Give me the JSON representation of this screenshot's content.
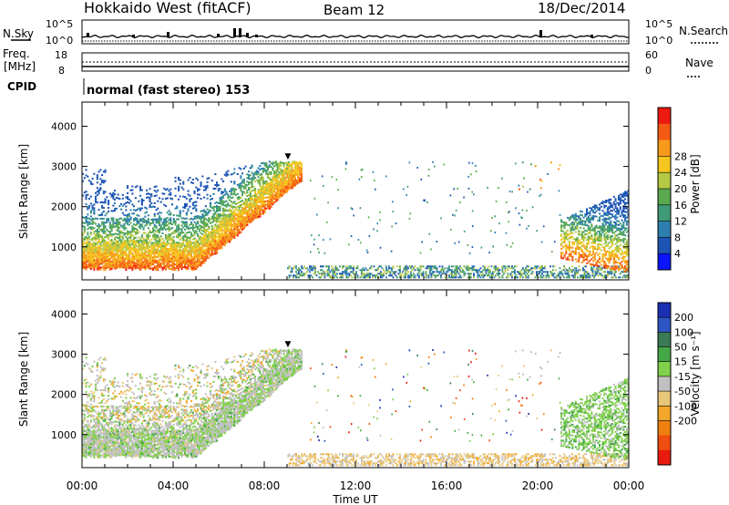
{
  "header": {
    "title": "Hokkaido West (fitACF)",
    "beam": "Beam 12",
    "date": "18/Dec/2014"
  },
  "top_panels": {
    "nsky_label": "N.Sky",
    "nsky_ticks": [
      "10^5",
      "10^0"
    ],
    "nsearch_label": "N.Search",
    "nsearch_ticks": [
      "10^5",
      "10^0"
    ],
    "freq_label": "Freq.",
    "freq_unit": "[MHz]",
    "freq_ticks": [
      "18",
      "8"
    ],
    "nave_label": "Nave",
    "nave_ticks": [
      "60",
      "0"
    ],
    "cpid_label": "CPID",
    "cpid_text": "normal (fast stereo) 153"
  },
  "chart_data": [
    {
      "type": "heatmap",
      "name": "power",
      "ylabel": "Slant Range [km]",
      "yticks": [
        "1000",
        "2000",
        "3000",
        "4000"
      ],
      "ylim": [
        180,
        4600
      ],
      "xticks": [
        "00:00",
        "04:00",
        "08:00",
        "12:00",
        "16:00",
        "20:00",
        "00:00"
      ],
      "xlim": [
        "00:00",
        "24:00"
      ],
      "colorbar": {
        "label": "Power [dB]",
        "ticks": [
          "4",
          "8",
          "12",
          "16",
          "20",
          "24",
          "28"
        ],
        "colors": [
          "#0a14ff",
          "#1d55b4",
          "#2e7fb0",
          "#3f9b77",
          "#5aa94e",
          "#b5c844",
          "#f5c61e",
          "#f79a1a",
          "#f45a13",
          "#ec1a10"
        ]
      }
    },
    {
      "type": "heatmap",
      "name": "velocity",
      "ylabel": "Slant Range [km]",
      "yticks": [
        "1000",
        "2000",
        "3000",
        "4000"
      ],
      "ylim": [
        180,
        4600
      ],
      "xticks": [
        "00:00",
        "04:00",
        "08:00",
        "12:00",
        "16:00",
        "20:00",
        "00:00"
      ],
      "xlim": [
        "00:00",
        "24:00"
      ],
      "xlabel": "Time UT",
      "colorbar": {
        "label": "Velocity [m s⁻¹]",
        "ticks": [
          "200",
          "100",
          "50",
          "15",
          "-15",
          "-50",
          "-100",
          "-200"
        ],
        "colors": [
          "#1a2fb2",
          "#2e55c4",
          "#3b7a55",
          "#44a748",
          "#7fd04a",
          "#c0c0c0",
          "#e8c77a",
          "#f2a72a",
          "#f07f12",
          "#f04d10",
          "#ea1a0e"
        ]
      }
    }
  ]
}
